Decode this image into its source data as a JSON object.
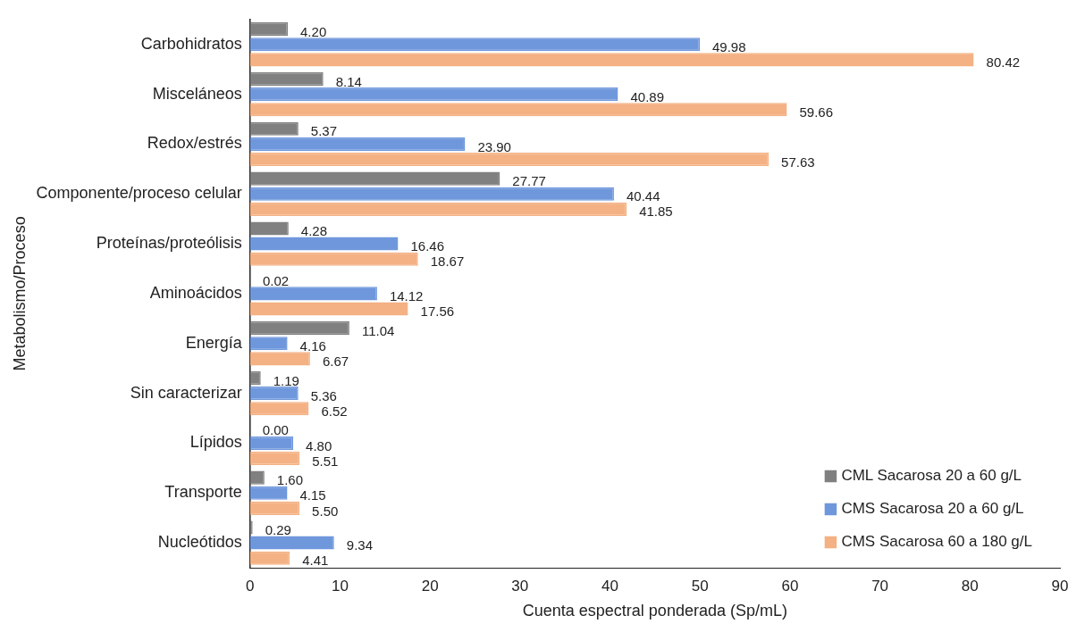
{
  "chart_data": {
    "type": "bar",
    "orientation": "horizontal",
    "xlabel": "Cuenta espectral ponderada (Sp/mL)",
    "ylabel": "Metabolismo/Proceso",
    "categories": [
      "Carbohidratos",
      "Misceláneos",
      "Redox/estrés",
      "Componente/proceso celular",
      "Proteínas/proteólisis",
      "Aminoácidos",
      "Energía",
      "Sin caracterizar",
      "Lípidos",
      "Transporte",
      "Nucleótidos"
    ],
    "series": [
      {
        "name": "CML Sacarosa 20 a 60 g/L",
        "color": "#808080",
        "values": [
          4.2,
          8.14,
          5.37,
          27.77,
          4.28,
          0.02,
          11.04,
          1.19,
          0.0,
          1.6,
          0.29
        ],
        "value_labels": [
          "4.20",
          "8.14",
          "5.37",
          "27.77",
          "4.28",
          "0.02",
          "11.04",
          "1.19",
          "0.00",
          "1.60",
          "0.29"
        ]
      },
      {
        "name": "CMS Sacarosa 20 a 60 g/L",
        "color": "#6f97dc",
        "values": [
          49.98,
          40.89,
          23.9,
          40.44,
          16.46,
          14.12,
          4.16,
          5.36,
          4.8,
          4.15,
          9.34
        ],
        "value_labels": [
          "49.98",
          "40.89",
          "23.90",
          "40.44",
          "16.46",
          "14.12",
          "4.16",
          "5.36",
          "4.80",
          "4.15",
          "9.34"
        ]
      },
      {
        "name": "CMS Sacarosa 60 a 180 g/L",
        "color": "#f4b183",
        "values": [
          80.42,
          59.66,
          57.63,
          41.85,
          18.67,
          17.56,
          6.67,
          6.52,
          5.51,
          5.5,
          4.41
        ],
        "value_labels": [
          "80.42",
          "59.66",
          "57.63",
          "41.85",
          "18.67",
          "17.56",
          "6.67",
          "6.52",
          "5.51",
          "5.50",
          "4.41"
        ]
      }
    ],
    "xlim": [
      0,
      90
    ],
    "xticks": [
      0,
      10,
      20,
      30,
      40,
      50,
      60,
      70,
      80,
      90
    ],
    "grid": false,
    "legend": "bottom right"
  }
}
